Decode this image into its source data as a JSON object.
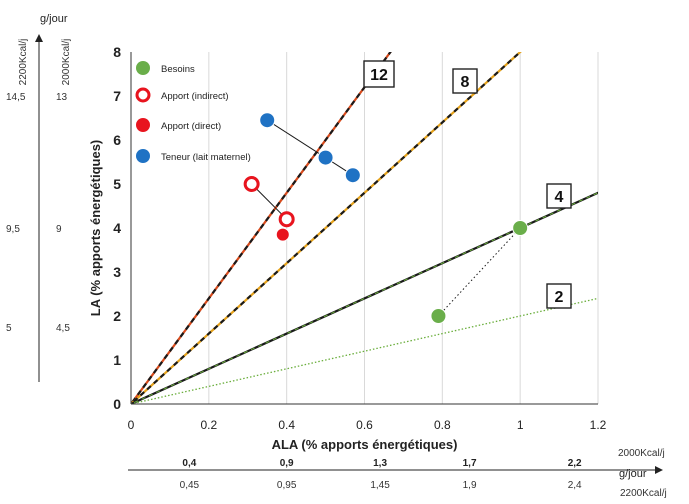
{
  "chart_data": {
    "type": "scatter",
    "xlabel": "ALA (% apports énergétiques)",
    "ylabel": "LA (% apports énergétiques)",
    "xlim": [
      0,
      1.2
    ],
    "ylim": [
      0,
      8
    ],
    "x_ticks": [
      "0",
      "0.2",
      "0.4",
      "0.6",
      "0.8",
      "1",
      "1.2"
    ],
    "y_ticks": [
      "0",
      "1",
      "2",
      "3",
      "4",
      "5",
      "6",
      "7",
      "8"
    ],
    "grid": "vertical",
    "legend_position": "top-left",
    "ratio_lines": [
      {
        "label": "12",
        "ratio": 12,
        "color": "#d84a1b",
        "style": "red-dashed"
      },
      {
        "label": "8",
        "ratio": 8,
        "color": "#e6a21a",
        "style": "orange-dashed"
      },
      {
        "label": "4",
        "ratio": 4,
        "color": "#1a1a1a",
        "style": "solid-dashed"
      },
      {
        "label": "2",
        "ratio": 2,
        "color": "#6aae3c",
        "style": "green-dotted"
      }
    ],
    "series": [
      {
        "name": "Besoins",
        "color": "#6aae4a",
        "marker": "filled-circle",
        "points": [
          {
            "x": 0.79,
            "y": 2.0
          },
          {
            "x": 1.0,
            "y": 4.0
          }
        ]
      },
      {
        "name": "Apport (indirect)",
        "color": "#e8141e",
        "marker": "open-circle",
        "points": [
          {
            "x": 0.31,
            "y": 5.0
          },
          {
            "x": 0.4,
            "y": 4.2
          }
        ]
      },
      {
        "name": "Apport (direct)",
        "color": "#e8141e",
        "marker": "filled-circle",
        "points": [
          {
            "x": 0.39,
            "y": 3.85
          }
        ]
      },
      {
        "name": "Teneur (lait maternel)",
        "color": "#1f72c4",
        "marker": "filled-circle",
        "points": [
          {
            "x": 0.35,
            "y": 6.45
          },
          {
            "x": 0.5,
            "y": 5.6
          },
          {
            "x": 0.57,
            "y": 5.2
          }
        ]
      }
    ],
    "connectors": [
      {
        "from": {
          "x": 0.35,
          "y": 6.45
        },
        "to": {
          "x": 0.57,
          "y": 5.2
        },
        "style": "solid-arrow"
      },
      {
        "from": {
          "x": 0.31,
          "y": 5.0
        },
        "to": {
          "x": 0.4,
          "y": 4.2
        },
        "style": "solid"
      },
      {
        "from": {
          "x": 0.79,
          "y": 2.0
        },
        "to": {
          "x": 1.0,
          "y": 4.0
        },
        "style": "dotted"
      }
    ],
    "left_scale": {
      "unit_top": "g/jour",
      "col1_header": "2200Kcal/j",
      "col2_header": "2000Kcal/j",
      "ticks": [
        {
          "y": 7,
          "col1": "14,5",
          "col2": "13"
        },
        {
          "y": 4,
          "col1": "9,5",
          "col2": "9"
        },
        {
          "y": 1.75,
          "col1": "5",
          "col2": "4,5"
        }
      ]
    },
    "bottom_scale": {
      "row1_label": "2000Kcal/j",
      "unit_label": "g/jour",
      "row2_label": "2200Kcal/j",
      "ticks": [
        {
          "x": 0.15,
          "row1": "0,4",
          "row2": "0,45"
        },
        {
          "x": 0.4,
          "row1": "0,9",
          "row2": "0,95"
        },
        {
          "x": 0.64,
          "row1": "1,3",
          "row2": "1,45"
        },
        {
          "x": 0.87,
          "row1": "1,7",
          "row2": "1,9"
        },
        {
          "x": 1.14,
          "row1": "2,2",
          "row2": "2,4"
        }
      ]
    }
  }
}
